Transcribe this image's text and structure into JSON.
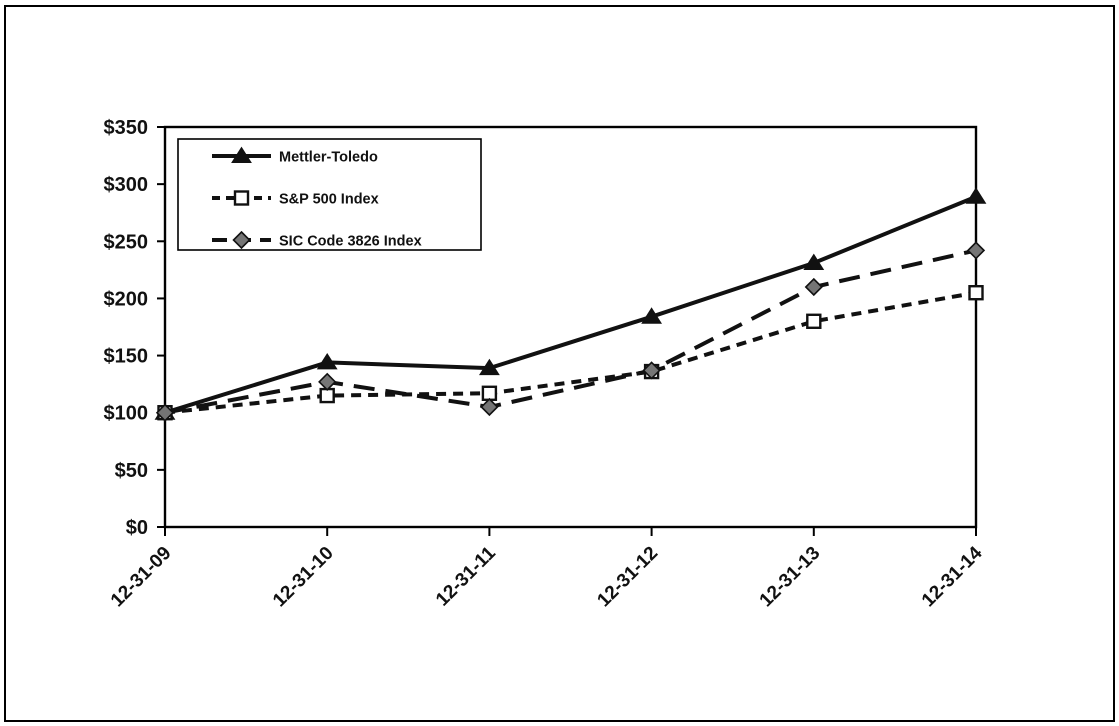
{
  "chart_data": {
    "type": "line",
    "title": "",
    "x_categories": [
      "12-31-09",
      "12-31-10",
      "12-31-11",
      "12-31-12",
      "12-31-13",
      "12-31-14"
    ],
    "y_tick_labels": [
      "$0",
      "$50",
      "$100",
      "$150",
      "$200",
      "$250",
      "$300",
      "$350"
    ],
    "ylim": [
      0,
      350
    ],
    "y_tick_step": 50,
    "grid": false,
    "legend_position": "top-left-inside",
    "series": [
      {
        "name": "Mettler-Toledo",
        "values": [
          100,
          144,
          139,
          184,
          231,
          289
        ],
        "line_style": "solid",
        "marker": "triangle",
        "marker_fill": "#111111",
        "color": "#111111"
      },
      {
        "name": "S&P 500 Index",
        "values": [
          100,
          115,
          117,
          136,
          180,
          205
        ],
        "line_style": "short-dash",
        "marker": "square",
        "marker_fill": "#ffffff",
        "color": "#111111"
      },
      {
        "name": "SIC Code 3826 Index",
        "values": [
          100,
          127,
          105,
          137,
          210,
          242
        ],
        "line_style": "long-dash",
        "marker": "diamond",
        "marker_fill": "#757575",
        "color": "#111111"
      }
    ]
  },
  "colors": {
    "axis": "#000000",
    "background": "#ffffff",
    "text": "#111111",
    "legend_border": "#000000"
  }
}
